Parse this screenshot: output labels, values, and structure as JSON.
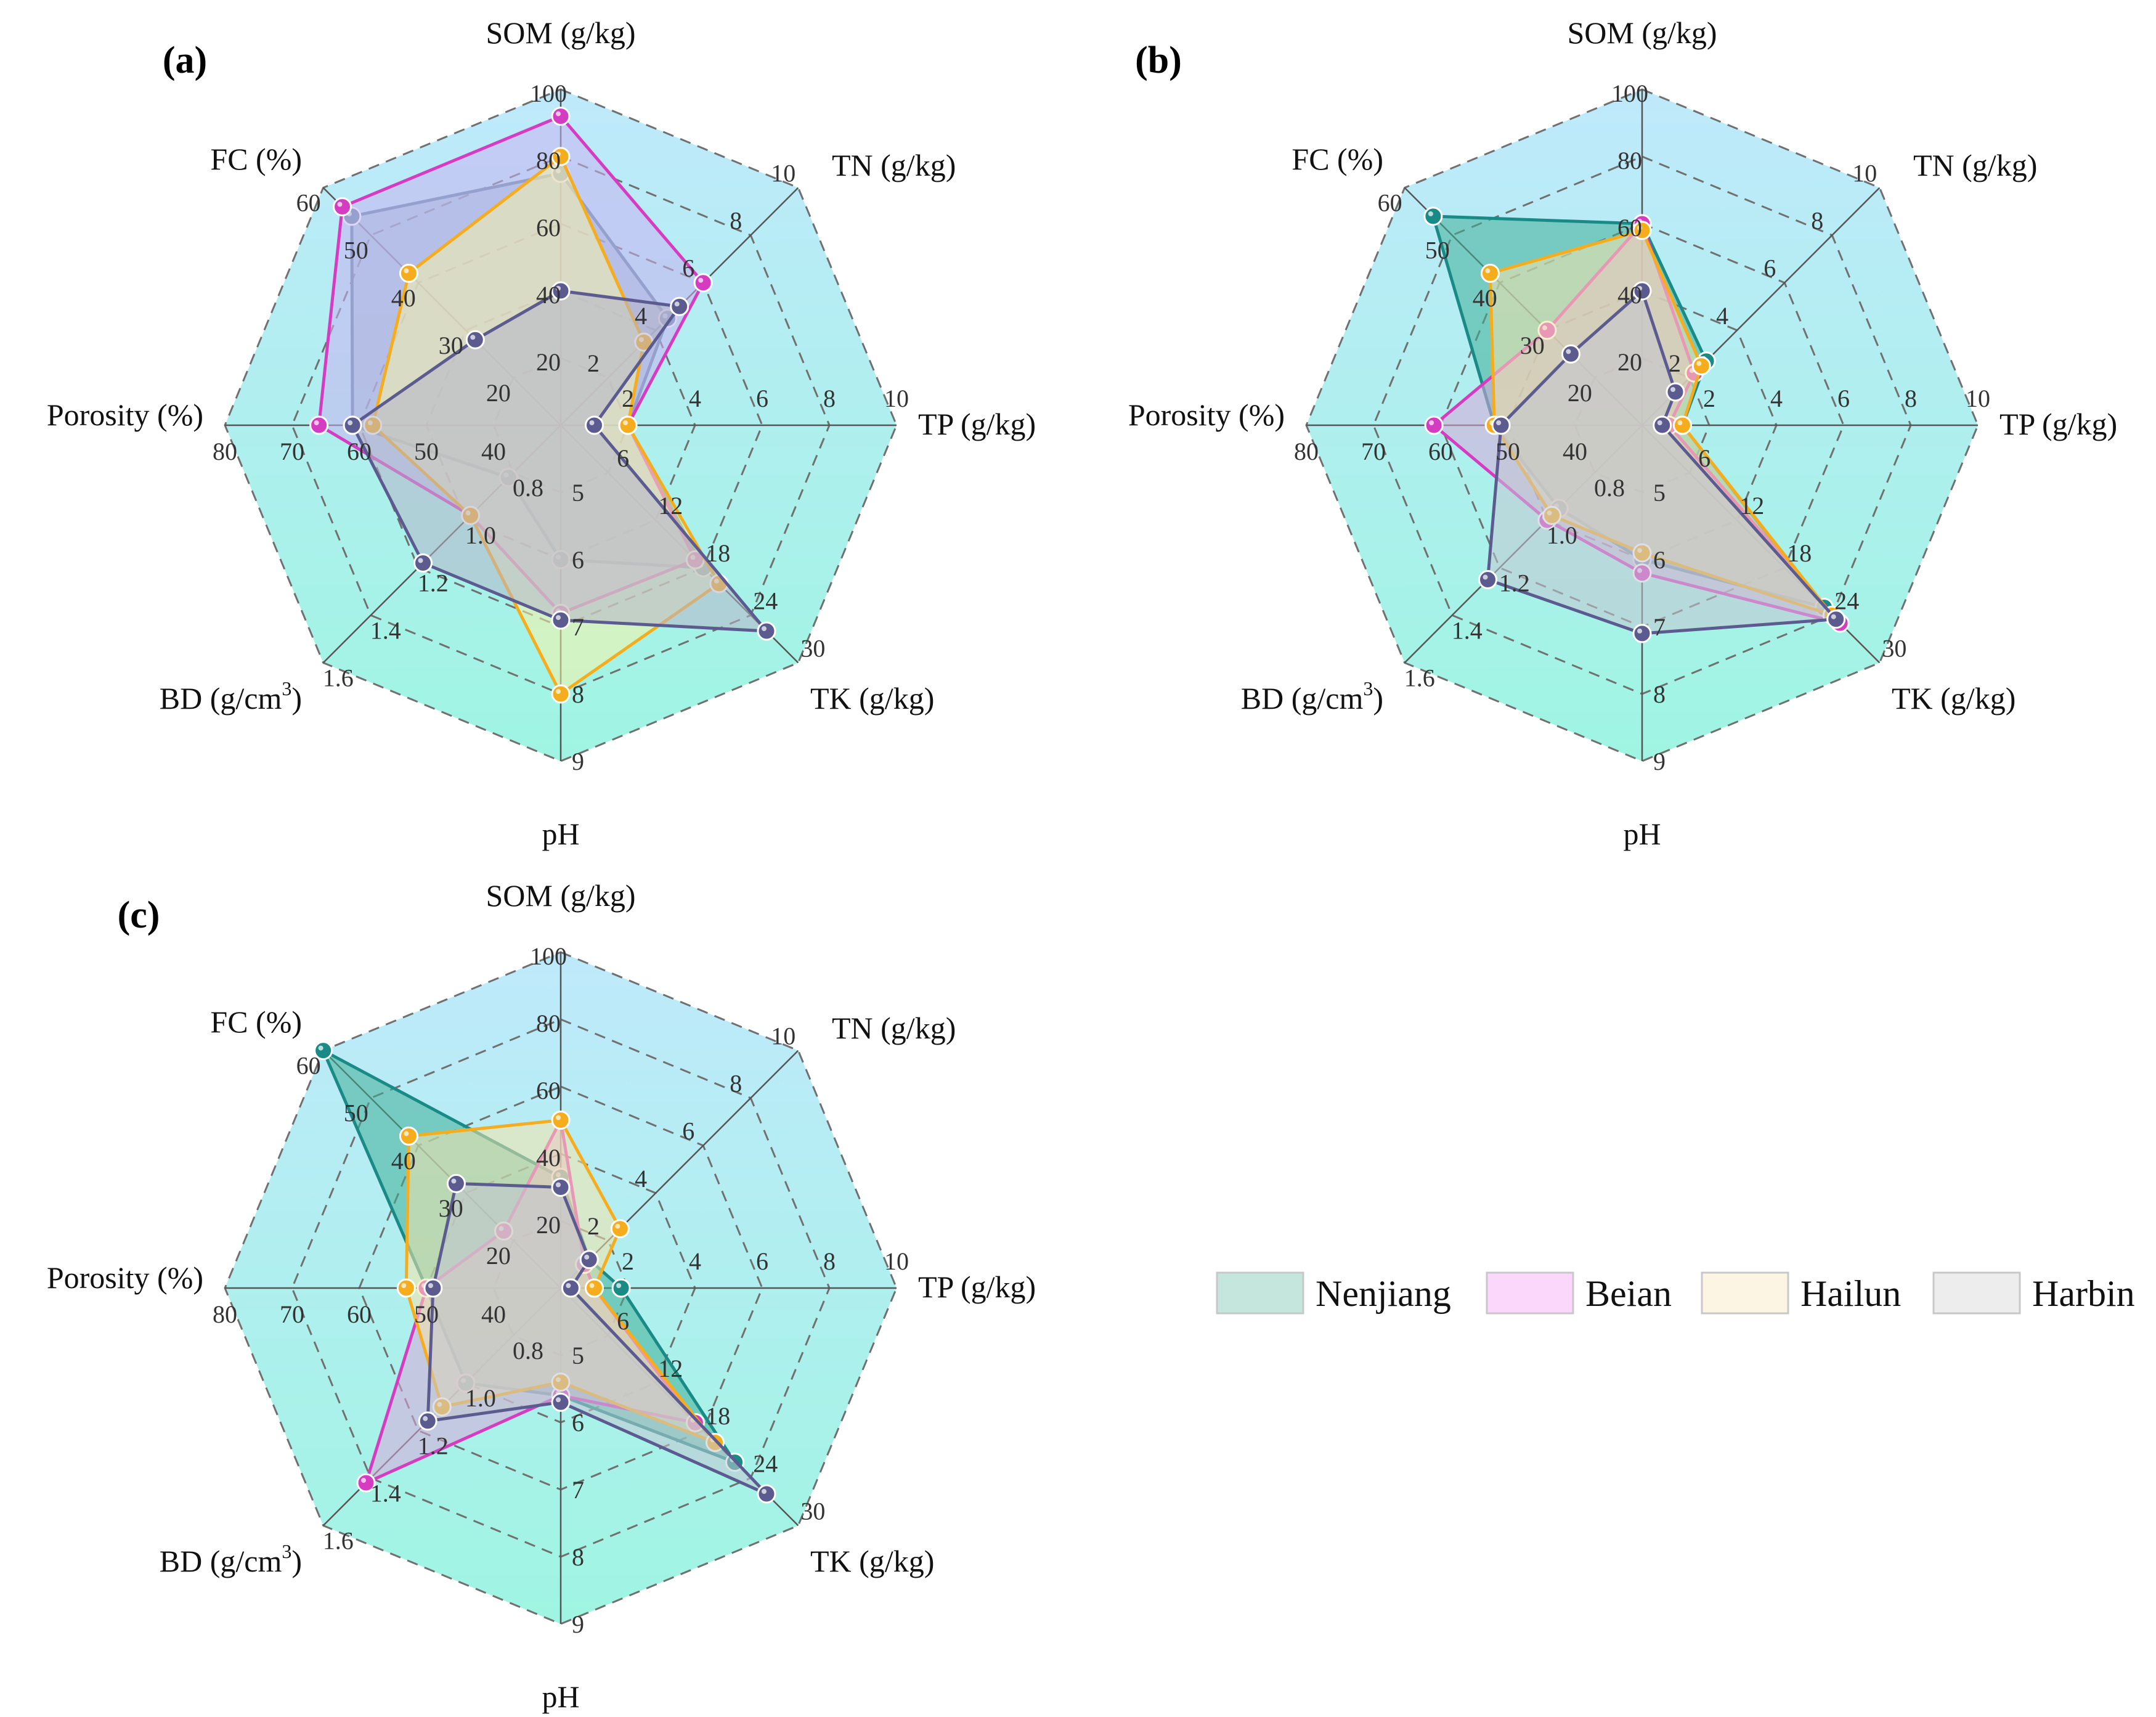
{
  "figure": {
    "legend": [
      {
        "name": "Nenjiang",
        "fill": "#c4e6dd",
        "line": "#1a8a86"
      },
      {
        "name": "Beian",
        "fill": "#fbd8fb",
        "line": "#d63cc2"
      },
      {
        "name": "Hailun",
        "fill": "#fdf5e4",
        "line": "#f5ad1e"
      },
      {
        "name": "Harbin",
        "fill": "#ededed",
        "line": "#8a9aa6"
      }
    ],
    "colors": {
      "background_top": "#bfe9fb",
      "background_bottom": "#9ff5e2",
      "dark_series_line": "#5b5b8f"
    }
  },
  "chart_data": [
    {
      "type": "radar",
      "panel": "(a)",
      "axes": [
        {
          "label": "SOM (g/kg)",
          "min": 0,
          "max": 100,
          "ticks": [
            "20",
            "40",
            "60",
            "80",
            "100"
          ]
        },
        {
          "label": "TN (g/kg)",
          "min": 0,
          "max": 10,
          "ticks": [
            "2",
            "4",
            "6",
            "8",
            "10"
          ]
        },
        {
          "label": "TP (g/kg)",
          "min": 0,
          "max": 10,
          "ticks": [
            "2",
            "4",
            "6",
            "8",
            "10"
          ]
        },
        {
          "label": "TK (g/kg)",
          "min": 0,
          "max": 30,
          "ticks": [
            "6",
            "12",
            "18",
            "24",
            "30"
          ]
        },
        {
          "label": "pH",
          "min": 4,
          "max": 9,
          "ticks": [
            "5",
            "6",
            "7",
            "8",
            "9"
          ]
        },
        {
          "label": "BD (g/cm³)",
          "min": 0.6,
          "max": 1.6,
          "ticks": [
            "0.8",
            "1.0",
            "1.2",
            "1.4",
            "1.6"
          ]
        },
        {
          "label": "Porosity (%)",
          "min": 30,
          "max": 80,
          "ticks": [
            "40",
            "50",
            "60",
            "70",
            "80"
          ]
        },
        {
          "label": "FC (%)",
          "min": 10,
          "max": 60,
          "ticks": [
            "20",
            "30",
            "40",
            "50",
            "60"
          ]
        }
      ],
      "series": [
        {
          "values": [
            75,
            4.5,
            2.0,
            18,
            6.0,
            0.82,
            61,
            54
          ],
          "fill": "#8fb7c7",
          "line": "#5a8aa2"
        },
        {
          "values": [
            92,
            6.0,
            2.0,
            17,
            6.8,
            0.98,
            66,
            56
          ],
          "fill": "#c7b3f0",
          "line": "#d63cc2"
        },
        {
          "values": [
            80,
            3.5,
            2.0,
            20,
            8.0,
            0.98,
            58,
            42
          ],
          "fill": "#f7f2a8",
          "line": "#f5ad1e"
        },
        {
          "values": [
            40,
            5.0,
            1.0,
            26,
            6.9,
            1.18,
            61,
            28
          ],
          "fill": "#b5b4c8",
          "line": "#5b5b8f"
        }
      ]
    },
    {
      "type": "radar",
      "panel": "(b)",
      "axes": [
        {
          "label": "SOM (g/kg)",
          "min": 0,
          "max": 100,
          "ticks": [
            "20",
            "40",
            "60",
            "80",
            "100"
          ]
        },
        {
          "label": "TN (g/kg)",
          "min": 0,
          "max": 10,
          "ticks": [
            "2",
            "4",
            "6",
            "8",
            "10"
          ]
        },
        {
          "label": "TP (g/kg)",
          "min": 0,
          "max": 10,
          "ticks": [
            "2",
            "4",
            "6",
            "8",
            "10"
          ]
        },
        {
          "label": "TK (g/kg)",
          "min": 0,
          "max": 30,
          "ticks": [
            "6",
            "12",
            "18",
            "24",
            "30"
          ]
        },
        {
          "label": "pH",
          "min": 4,
          "max": 9,
          "ticks": [
            "5",
            "6",
            "7",
            "8",
            "9"
          ]
        },
        {
          "label": "BD (g/cm³)",
          "min": 0.6,
          "max": 1.6,
          "ticks": [
            "0.8",
            "1.0",
            "1.2",
            "1.4",
            "1.6"
          ]
        },
        {
          "label": "Porosity (%)",
          "min": 30,
          "max": 80,
          "ticks": [
            "40",
            "50",
            "60",
            "70",
            "80"
          ]
        },
        {
          "label": "FC (%)",
          "min": 10,
          "max": 60,
          "ticks": [
            "20",
            "30",
            "40",
            "50",
            "60"
          ]
        }
      ],
      "series": [
        {
          "values": [
            60,
            2.7,
            1.2,
            23,
            6.0,
            0.95,
            52,
            54
          ],
          "fill": "#3fae97",
          "line": "#1a8a86"
        },
        {
          "values": [
            60,
            2.2,
            0.8,
            25,
            6.2,
            1.0,
            61,
            30
          ],
          "fill": "#d9a8d8",
          "line": "#d63cc2"
        },
        {
          "values": [
            58,
            2.5,
            1.2,
            24,
            5.9,
            0.98,
            52,
            42
          ],
          "fill": "#f6e3a9",
          "line": "#f5ad1e"
        },
        {
          "values": [
            40,
            1.4,
            0.6,
            24.5,
            7.1,
            1.25,
            51,
            25
          ],
          "fill": "#c2c6d2",
          "line": "#5b5b8f"
        }
      ]
    },
    {
      "type": "radar",
      "panel": "(c)",
      "axes": [
        {
          "label": "SOM (g/kg)",
          "min": 0,
          "max": 100,
          "ticks": [
            "20",
            "40",
            "60",
            "80",
            "100"
          ]
        },
        {
          "label": "TN (g/kg)",
          "min": 0,
          "max": 10,
          "ticks": [
            "2",
            "4",
            "6",
            "8",
            "10"
          ]
        },
        {
          "label": "TP (g/kg)",
          "min": 0,
          "max": 10,
          "ticks": [
            "2",
            "4",
            "6",
            "8",
            "10"
          ]
        },
        {
          "label": "TK (g/kg)",
          "min": 0,
          "max": 30,
          "ticks": [
            "6",
            "12",
            "18",
            "24",
            "30"
          ]
        },
        {
          "label": "pH",
          "min": 4,
          "max": 9,
          "ticks": [
            "5",
            "6",
            "7",
            "8",
            "9"
          ]
        },
        {
          "label": "BD (g/cm³)",
          "min": 0.6,
          "max": 1.6,
          "ticks": [
            "0.8",
            "1.0",
            "1.2",
            "1.4",
            "1.6"
          ]
        },
        {
          "label": "Porosity (%)",
          "min": 30,
          "max": 80,
          "ticks": [
            "40",
            "50",
            "60",
            "70",
            "80"
          ]
        },
        {
          "label": "FC (%)",
          "min": 10,
          "max": 60,
          "ticks": [
            "20",
            "30",
            "40",
            "50",
            "60"
          ]
        }
      ],
      "series": [
        {
          "values": [
            33,
            1.2,
            1.8,
            22,
            5.6,
            1.0,
            50,
            60
          ],
          "fill": "#3fae97",
          "line": "#1a8a86"
        },
        {
          "values": [
            50,
            1.0,
            1.0,
            17,
            5.6,
            1.42,
            50,
            22
          ],
          "fill": "#d9a8d8",
          "line": "#d63cc2"
        },
        {
          "values": [
            50,
            2.5,
            1.0,
            19.5,
            5.4,
            1.1,
            53,
            42
          ],
          "fill": "#f6e3a9",
          "line": "#f5ad1e"
        },
        {
          "values": [
            30,
            1.2,
            0.3,
            26,
            5.7,
            1.16,
            49,
            32
          ],
          "fill": "#c2c6d2",
          "line": "#5b5b8f"
        }
      ]
    }
  ]
}
